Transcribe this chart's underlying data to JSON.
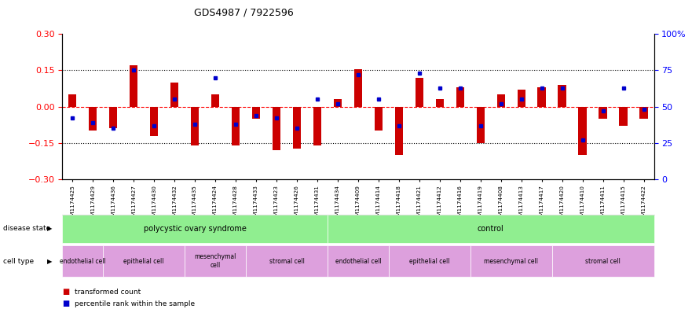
{
  "title": "GDS4987 / 7922596",
  "samples": [
    "GSM1174425",
    "GSM1174429",
    "GSM1174436",
    "GSM1174427",
    "GSM1174430",
    "GSM1174432",
    "GSM1174435",
    "GSM1174424",
    "GSM1174428",
    "GSM1174433",
    "GSM1174423",
    "GSM1174426",
    "GSM1174431",
    "GSM1174434",
    "GSM1174409",
    "GSM1174414",
    "GSM1174418",
    "GSM1174421",
    "GSM1174412",
    "GSM1174416",
    "GSM1174419",
    "GSM1174408",
    "GSM1174413",
    "GSM1174417",
    "GSM1174420",
    "GSM1174410",
    "GSM1174411",
    "GSM1174415",
    "GSM1174422"
  ],
  "transformed_count": [
    0.05,
    -0.1,
    -0.09,
    0.17,
    -0.12,
    0.1,
    -0.16,
    0.05,
    -0.16,
    -0.05,
    -0.18,
    -0.175,
    -0.16,
    0.03,
    0.155,
    -0.1,
    -0.2,
    0.12,
    0.03,
    0.08,
    -0.15,
    0.05,
    0.07,
    0.08,
    0.09,
    -0.2,
    -0.05,
    -0.08,
    -0.05
  ],
  "percentile_rank": [
    42,
    39,
    35,
    75,
    37,
    55,
    38,
    70,
    38,
    44,
    42,
    35,
    55,
    52,
    72,
    55,
    37,
    73,
    63,
    63,
    37,
    52,
    55,
    63,
    63,
    27,
    47,
    63,
    48
  ],
  "disease_state_groups": [
    {
      "label": "polycystic ovary syndrome",
      "start": 0,
      "end": 13,
      "color": "#90EE90"
    },
    {
      "label": "control",
      "start": 13,
      "end": 29,
      "color": "#90EE90"
    }
  ],
  "cell_type_groups": [
    {
      "label": "endothelial cell",
      "start": 0,
      "end": 2,
      "color": "#DDA0DD"
    },
    {
      "label": "epithelial cell",
      "start": 2,
      "end": 6,
      "color": "#DDA0DD"
    },
    {
      "label": "mesenchymal\ncell",
      "start": 6,
      "end": 9,
      "color": "#DDA0DD"
    },
    {
      "label": "stromal cell",
      "start": 9,
      "end": 13,
      "color": "#DDA0DD"
    },
    {
      "label": "endothelial cell",
      "start": 13,
      "end": 16,
      "color": "#DDA0DD"
    },
    {
      "label": "epithelial cell",
      "start": 16,
      "end": 20,
      "color": "#DDA0DD"
    },
    {
      "label": "mesenchymal cell",
      "start": 20,
      "end": 24,
      "color": "#DDA0DD"
    },
    {
      "label": "stromal cell",
      "start": 24,
      "end": 29,
      "color": "#DDA0DD"
    }
  ],
  "bar_color": "#CC0000",
  "dot_color": "#0000CC",
  "ylim_left": [
    -0.3,
    0.3
  ],
  "ylim_right": [
    0,
    100
  ],
  "yticks_left": [
    -0.3,
    -0.15,
    0.0,
    0.15,
    0.3
  ],
  "yticks_right": [
    0,
    25,
    50,
    75,
    100
  ],
  "ytick_labels_right": [
    "0",
    "25",
    "50",
    "75",
    "100%"
  ],
  "hline_y": [
    0.15,
    0.0,
    -0.15
  ],
  "hline_styles": [
    "dotted",
    "dashed",
    "dotted"
  ],
  "hline_colors": [
    "black",
    "red",
    "black"
  ],
  "background_color": "#ffffff"
}
